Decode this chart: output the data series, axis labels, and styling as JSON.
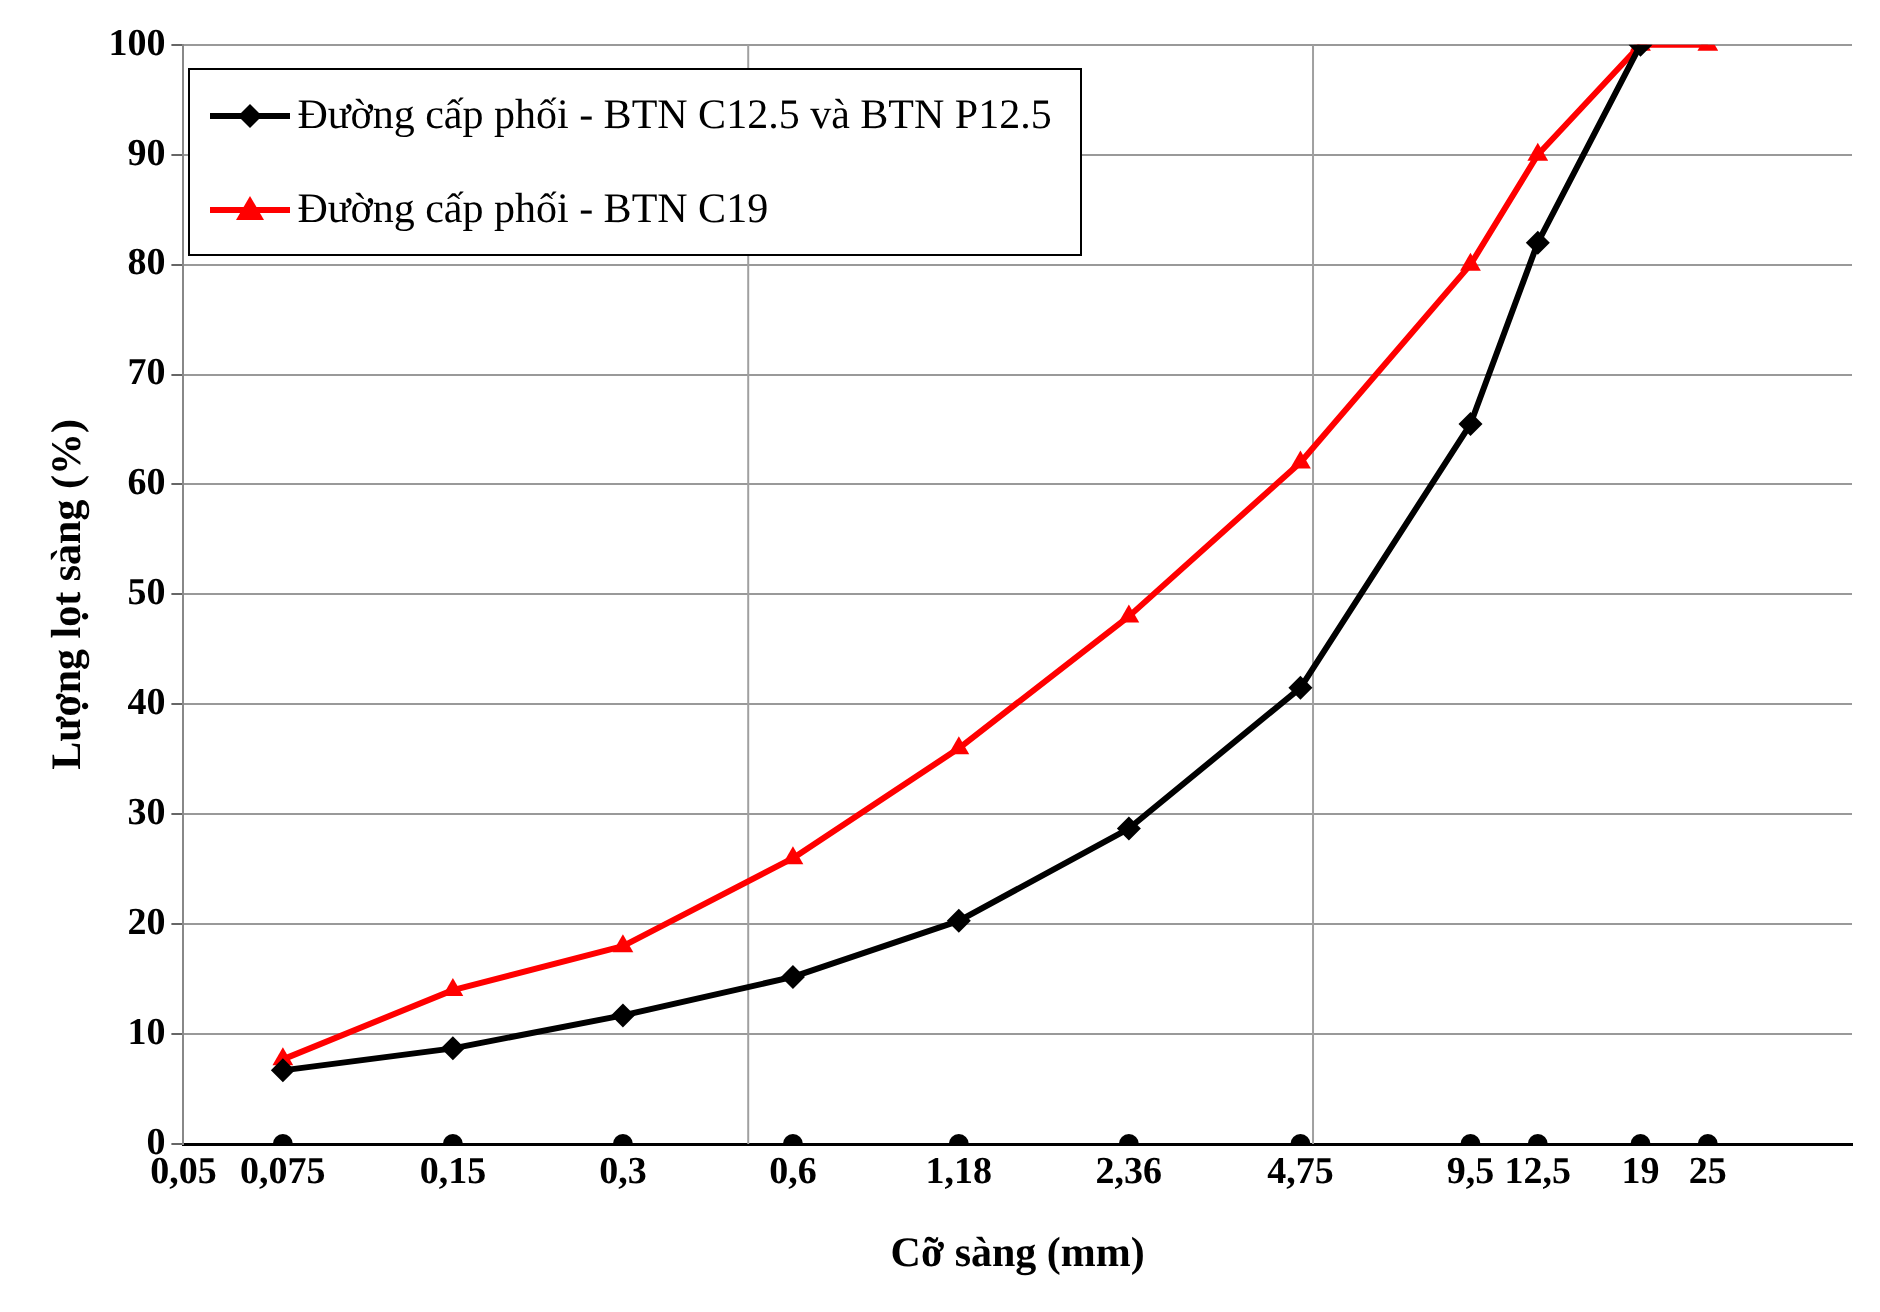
{
  "chart_data": {
    "type": "line",
    "xlabel": "Cỡ sàng (mm)",
    "ylabel": "Lượng lọt sàng (%)",
    "log": "x",
    "xlim": [
      0.05,
      45
    ],
    "ylim": [
      0,
      100
    ],
    "xticks": [
      {
        "value": 0.05,
        "label": "0,05"
      },
      {
        "value": 0.075,
        "label": "0,075"
      },
      {
        "value": 0.15,
        "label": "0,15"
      },
      {
        "value": 0.3,
        "label": "0,3"
      },
      {
        "value": 0.6,
        "label": "0,6"
      },
      {
        "value": 1.18,
        "label": "1,18"
      },
      {
        "value": 2.36,
        "label": "2,36"
      },
      {
        "value": 4.75,
        "label": "4,75"
      },
      {
        "value": 9.5,
        "label": "9,5"
      },
      {
        "value": 12.5,
        "label": "12,5"
      },
      {
        "value": 19,
        "label": "19"
      },
      {
        "value": 25,
        "label": "25"
      }
    ],
    "yticks": [
      0,
      10,
      20,
      30,
      40,
      50,
      60,
      70,
      80,
      90,
      100
    ],
    "grid": "y",
    "legend": "top left",
    "ref_lines": [
      {
        "axis": "x",
        "value": 0.5,
        "color": "#a0a0a0"
      },
      {
        "axis": "x",
        "value": 5,
        "color": "#a0a0a0"
      }
    ],
    "series": [
      {
        "name": "Đường cấp phối - BTN C12.5 và BTN P12.5",
        "color": "#000000",
        "marker": "diamond",
        "x": [
          0.075,
          0.15,
          0.3,
          0.6,
          1.18,
          2.36,
          4.75,
          9.5,
          12.5,
          19
        ],
        "values": [
          6.7,
          8.7,
          11.7,
          15.2,
          20.3,
          28.7,
          41.5,
          65.5,
          82,
          100
        ]
      },
      {
        "name": "Đường cấp phối - BTN C19",
        "color": "#ff0000",
        "marker": "triangle",
        "x": [
          0.075,
          0.15,
          0.3,
          0.6,
          1.18,
          2.36,
          4.75,
          9.5,
          12.5,
          19,
          25
        ],
        "values": [
          7.7,
          14,
          18,
          26,
          36,
          48,
          62,
          80,
          90,
          100,
          100
        ]
      },
      {
        "type": "scatter",
        "color": "#000000",
        "marker": "circle",
        "x": [
          0.075,
          0.15,
          0.3,
          0.6,
          1.18,
          2.36,
          4.75,
          9.5,
          12.5,
          19,
          25
        ],
        "values": [
          0,
          0,
          0,
          0,
          0,
          0,
          0,
          0,
          0,
          0,
          0
        ]
      }
    ]
  }
}
